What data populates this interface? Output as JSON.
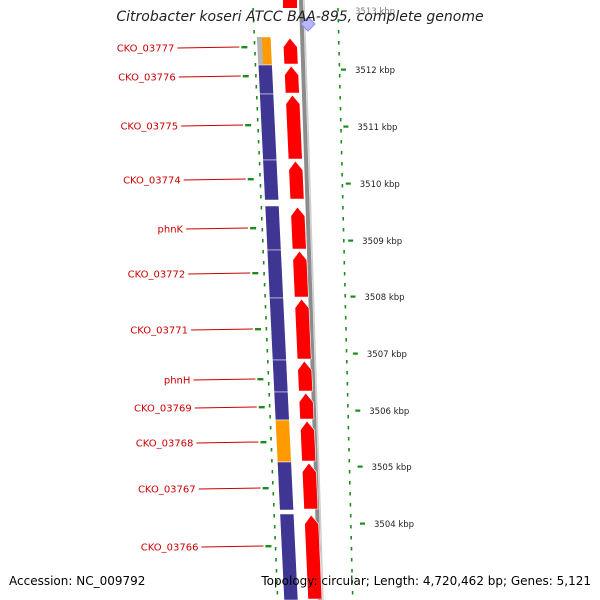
{
  "title": "Citrobacter koseri ATCC BAA-895, complete genome",
  "accession": "Accession: NC_009792",
  "topology": "Topology: circular; Length: 4,720,462 bp; Genes: 5,121",
  "colors": {
    "cds": "#ff0000",
    "cog_blue": "#3f3592",
    "cog_orange": "#ff9a00",
    "cog_gray": "#b4b4b4",
    "label": "#cc0000",
    "dots": "#1c8c1c",
    "axis": "#8c8c8c"
  },
  "top_tick_label": "3513 kbp",
  "scale_ticks": [
    "3512 kbp",
    "3511 kbp",
    "3510 kbp",
    "3509 kbp",
    "3508 kbp",
    "3507 kbp",
    "3506 kbp",
    "3505 kbp",
    "3504 kbp"
  ],
  "genes": [
    {
      "name": "CKO_03777",
      "cog": "orange"
    },
    {
      "name": "CKO_03776",
      "cog": "blue"
    },
    {
      "name": "CKO_03775",
      "cog": "blue"
    },
    {
      "name": "CKO_03774",
      "cog": "blue"
    },
    {
      "name": "phnK",
      "cog": "blue"
    },
    {
      "name": "CKO_03772",
      "cog": "blue"
    },
    {
      "name": "CKO_03771",
      "cog": "blue"
    },
    {
      "name": "phnH",
      "cog": "blue"
    },
    {
      "name": "CKO_03769",
      "cog": "blue"
    },
    {
      "name": "CKO_03768",
      "cog": "orange"
    },
    {
      "name": "CKO_03767",
      "cog": "blue"
    },
    {
      "name": "CKO_03766",
      "cog": "blue"
    }
  ]
}
